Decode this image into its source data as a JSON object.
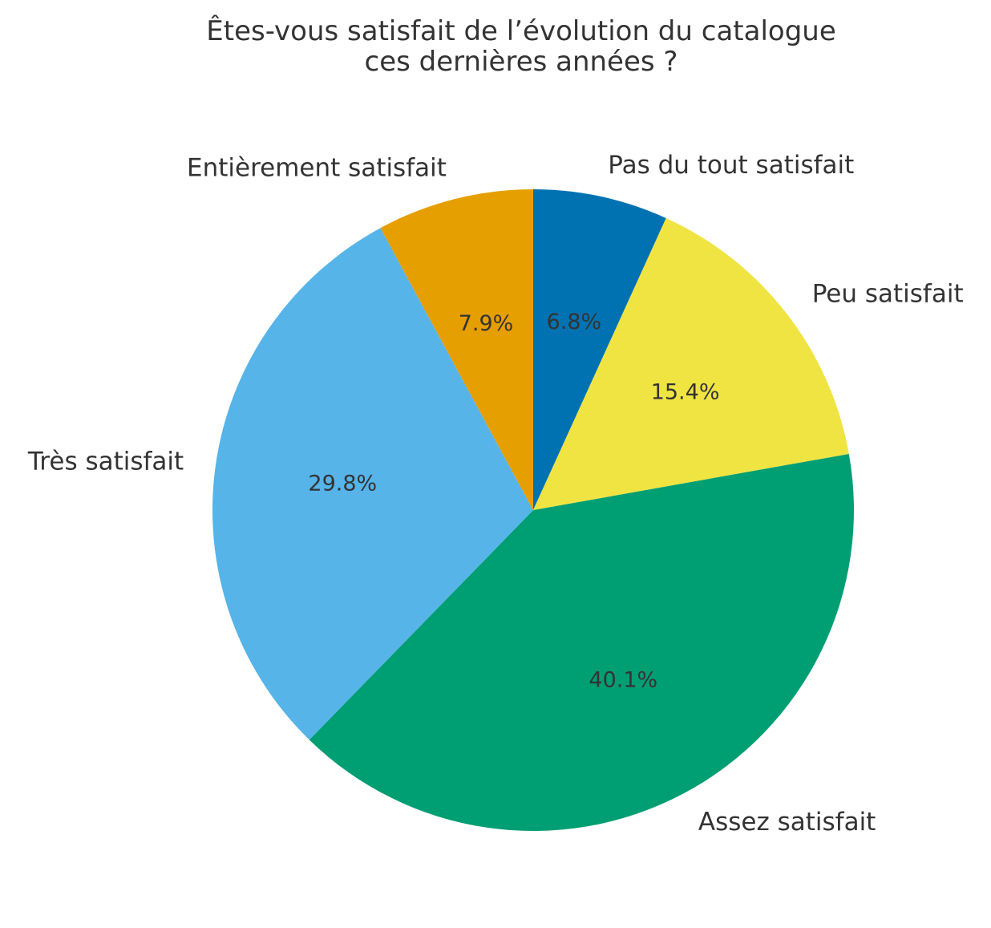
{
  "chart_data": {
    "type": "pie",
    "title_lines": [
      "Êtes-vous satisfait de l’évolution du catalogue",
      "ces dernières années ?"
    ],
    "slices": [
      {
        "label": "Pas du tout satisfait",
        "value": 6.8,
        "pct_label": "6.8%",
        "color": "#0072B2"
      },
      {
        "label": "Peu satisfait",
        "value": 15.4,
        "pct_label": "15.4%",
        "color": "#F0E442"
      },
      {
        "label": "Assez satisfait",
        "value": 40.1,
        "pct_label": "40.1%",
        "color": "#009E73"
      },
      {
        "label": "Très satisfait",
        "value": 29.8,
        "pct_label": "29.8%",
        "color": "#56B4E9"
      },
      {
        "label": "Entièrement satisfait",
        "value": 7.9,
        "pct_label": "7.9%",
        "color": "#E69F00"
      }
    ],
    "start_position": "top",
    "direction": "clockwise"
  }
}
